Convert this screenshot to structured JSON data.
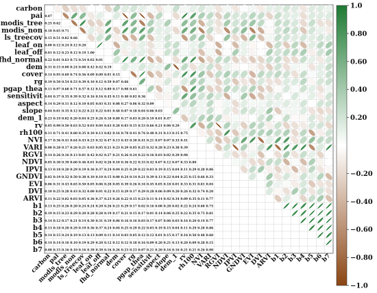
{
  "chart_data": {
    "type": "heatmap",
    "variables": [
      "carbon",
      "pai",
      "modis_tree",
      "modis_non",
      "ls_treecov",
      "leaf_on",
      "leaf_off",
      "fhd_normal",
      "dem",
      "cover",
      "rg",
      "pgap_thea",
      "sensitivit",
      "aspect",
      "slope",
      "dem_1",
      "rv",
      "rh100",
      "NVI",
      "VARI",
      "RGVI",
      "NDVI",
      "IPVI",
      "GNDVI",
      "EVI",
      "DVI",
      "ARVI",
      "b1",
      "b2",
      "b3",
      "b4",
      "b5",
      "b6",
      "b7"
    ],
    "colorbar": {
      "range": [
        -1.0,
        1.0
      ],
      "ticks": [
        "1.0",
        "0.80",
        "0.60",
        "0.40",
        "0.20",
        "−0.20",
        "−0.40",
        "−0.60",
        "−0.80",
        "−1.0"
      ],
      "tick_values": [
        1.0,
        0.8,
        0.6,
        0.4,
        0.2,
        -0.2,
        -0.4,
        -0.6,
        -0.8,
        -1.0
      ]
    },
    "colors": {
      "positive": "#1e7a33",
      "negative": "#8b4513",
      "neutral": "#ffffff",
      "grid": "#c8c8c8"
    },
    "lower_triangle_values": [
      [
        "0.07"
      ],
      [
        "0.25",
        "0.62"
      ],
      [
        "0.18",
        "0.65",
        "0.71"
      ],
      [
        "0.15",
        "0.51",
        "0.82",
        "0.66"
      ],
      [
        "0.00",
        "0.12",
        "0.24",
        "0.12",
        "0.20"
      ],
      [
        "0.01",
        "0.12",
        "0.23",
        "0.12",
        "0.19",
        "1.00"
      ],
      [
        "0.22",
        "0.01",
        "0.63",
        "0.72",
        "0.54",
        "0.02",
        "0.01"
      ],
      [
        "0.31",
        "0.15",
        "0.00",
        "0.24",
        "0.08",
        "0.42",
        "0.42",
        "0.19"
      ],
      [
        "0.14",
        "0.95",
        "0.69",
        "0.74",
        "0.56",
        "0.09",
        "0.09",
        "0.91",
        "0.15"
      ],
      [
        "0.19",
        "0.50",
        "0.54",
        "0.53",
        "0.39",
        "0.10",
        "0.12",
        "0.59",
        "0.07",
        "0.66"
      ],
      [
        "0.11",
        "0.97",
        "0.68",
        "0.71",
        "0.57",
        "0.12",
        "0.12",
        "0.89",
        "0.17",
        "0.98",
        "0.61"
      ],
      [
        "0.04",
        "0.37",
        "0.35",
        "0.39",
        "0.32",
        "0.16",
        "0.16",
        "0.45",
        "0.11",
        "0.40",
        "0.02",
        "0.36"
      ],
      [
        "0.14",
        "0.29",
        "0.11",
        "0.12",
        "0.10",
        "0.05",
        "0.03",
        "0.31",
        "0.08",
        "0.27",
        "0.06",
        "0.32",
        "0.09"
      ],
      [
        "0.04",
        "0.01",
        "0.35",
        "0.12",
        "0.22",
        "0.22",
        "0.22",
        "0.01",
        "0.48",
        "0.07",
        "0.18",
        "0.04",
        "0.06",
        "0.03"
      ],
      [
        "0.23",
        "0.19",
        "0.02",
        "0.20",
        "0.04",
        "0.25",
        "0.26",
        "0.18",
        "0.89",
        "0.17",
        "0.03",
        "0.20",
        "0.19",
        "0.01",
        "0.47"
      ],
      [
        "0.05",
        "0.90",
        "0.50",
        "0.63",
        "0.52",
        "0.03",
        "0.04",
        "0.63",
        "0.28",
        "0.83",
        "0.15",
        "0.53",
        "0.66",
        "0.21",
        "0.06",
        "0.29"
      ],
      [
        "0.11",
        "0.71",
        "0.41",
        "0.60",
        "0.35",
        "0.10",
        "0.13",
        "0.82",
        "0.16",
        "0.78",
        "0.41",
        "0.76",
        "0.48",
        "0.31",
        "0.13",
        "0.15",
        "0.75"
      ],
      [
        "0.17",
        "0.36",
        "0.41",
        "0.64",
        "0.43",
        "0.23",
        "0.32",
        "0.47",
        "0.13",
        "0.43",
        "0.30",
        "0.41",
        "0.21",
        "0.07",
        "0.07",
        "0.33",
        "0.41"
      ],
      [
        "0.08",
        "0.28",
        "0.17",
        "0.26",
        "0.21",
        "0.03",
        "0.05",
        "0.21",
        "0.23",
        "0.29",
        "0.05",
        "0.25",
        "0.32",
        "0.28",
        "0.23",
        "0.38",
        "0.39"
      ],
      [
        "0.14",
        "0.26",
        "0.16",
        "0.13",
        "0.01",
        "0.42",
        "0.42",
        "0.27",
        "0.21",
        "0.26",
        "0.24",
        "0.22",
        "0.16",
        "0.03",
        "0.02",
        "0.29",
        "0.98"
      ],
      [
        "0.05",
        "0.30",
        "0.39",
        "0.60",
        "0.46",
        "0.01",
        "0.02",
        "0.26",
        "0.10",
        "0.36",
        "0.22",
        "0.33",
        "0.42",
        "0.07",
        "0.12",
        "0.07",
        "0.33",
        "0.80"
      ],
      [
        "0.13",
        "0.18",
        "0.20",
        "0.29",
        "0.19",
        "0.36",
        "0.37",
        "0.24",
        "0.04",
        "0.25",
        "0.29",
        "0.22",
        "0.03",
        "0.19",
        "0.15",
        "0.04",
        "0.11",
        "0.29",
        "0.28",
        "0.86"
      ],
      [
        "0.02",
        "0.19",
        "0.32",
        "0.50",
        "0.38",
        "0.10",
        "0.10",
        "0.15",
        "0.00",
        "0.24",
        "0.14",
        "0.21",
        "0.39",
        "0.13",
        "0.22",
        "0.04",
        "0.25",
        "0.15",
        "0.66",
        "0.33"
      ],
      [
        "0.06",
        "0.31",
        "0.43",
        "0.65",
        "0.50",
        "0.05",
        "0.06",
        "0.28",
        "0.05",
        "0.39",
        "0.26",
        "0.34",
        "0.45",
        "0.05",
        "0.18",
        "0.01",
        "0.33",
        "0.31",
        "0.81",
        "0.04"
      ],
      [
        "0.10",
        "0.25",
        "0.28",
        "0.43",
        "0.32",
        "0.00",
        "0.01",
        "0.22",
        "0.15",
        "0.29",
        "0.17",
        "0.29",
        "0.28",
        "0.06",
        "0.09",
        "0.20",
        "0.26",
        "0.32",
        "0.74",
        "0.20"
      ],
      [
        "0.11",
        "0.22",
        "0.02",
        "0.03",
        "0.05",
        "0.36",
        "0.37",
        "0.23",
        "0.26",
        "0.22",
        "0.15",
        "0.23",
        "0.11",
        "0.14",
        "0.42",
        "0.34",
        "0.09",
        "0.35",
        "0.11",
        "0.77"
      ],
      [
        "0.13",
        "0.25",
        "0.26",
        "0.20",
        "0.24",
        "0.24",
        "0.20",
        "0.26",
        "0.21",
        "0.29",
        "0.17",
        "0.02",
        "0.16",
        "0.08",
        "0.28",
        "0.02",
        "0.22",
        "0.24",
        "0.68",
        "0.75"
      ],
      [
        "0.19",
        "0.15",
        "0.23",
        "0.29",
        "0.20",
        "0.28",
        "0.28",
        "0.19",
        "0.17",
        "0.21",
        "0.15",
        "0.17",
        "0.01",
        "0.14",
        "0.06",
        "0.25",
        "0.22",
        "0.35",
        "0.75",
        "0.81"
      ],
      [
        "0.14",
        "0.12",
        "0.17",
        "0.21",
        "0.14",
        "0.30",
        "0.31",
        "0.19",
        "0.06",
        "0.16",
        "0.16",
        "0.03",
        "0.17",
        "0.07",
        "0.06",
        "0.03",
        "0.16",
        "0.20",
        "0.14",
        "0.77"
      ],
      [
        "0.13",
        "0.18",
        "0.20",
        "0.29",
        "0.19",
        "0.36",
        "0.37",
        "0.24",
        "0.04",
        "0.25",
        "0.29",
        "0.22",
        "0.03",
        "0.19",
        "0.15",
        "0.04",
        "0.11",
        "0.29",
        "0.28",
        "0.86"
      ],
      [
        "0.14",
        "0.15",
        "0.24",
        "0.19",
        "0.13",
        "0.13",
        "0.09",
        "0.11",
        "0.14",
        "0.03",
        "0.05",
        "0.12",
        "0.12",
        "0.01",
        "0.15",
        "0.17",
        "0.16",
        "0.50",
        "0.48",
        "0.60"
      ],
      [
        "0.14",
        "0.14",
        "0.16",
        "0.10",
        "0.19",
        "0.29",
        "0.20",
        "0.12",
        "0.12",
        "0.12",
        "0.18",
        "0.16",
        "0.09",
        "0.20",
        "0.21",
        "0.13",
        "0.20",
        "0.09",
        "0.28",
        "0.15"
      ],
      [
        "0.08",
        "0.15",
        "0.16",
        "0.10",
        "0.16",
        "0.39",
        "0.39",
        "0.16",
        "0.26",
        "0.23",
        "0.23",
        "0.07",
        "0.21",
        "0.20",
        "0.16",
        "0.16",
        "0.21",
        "0.21",
        "0.26",
        "0.90"
      ]
    ],
    "title": "",
    "xlabel": "",
    "ylabel": ""
  }
}
